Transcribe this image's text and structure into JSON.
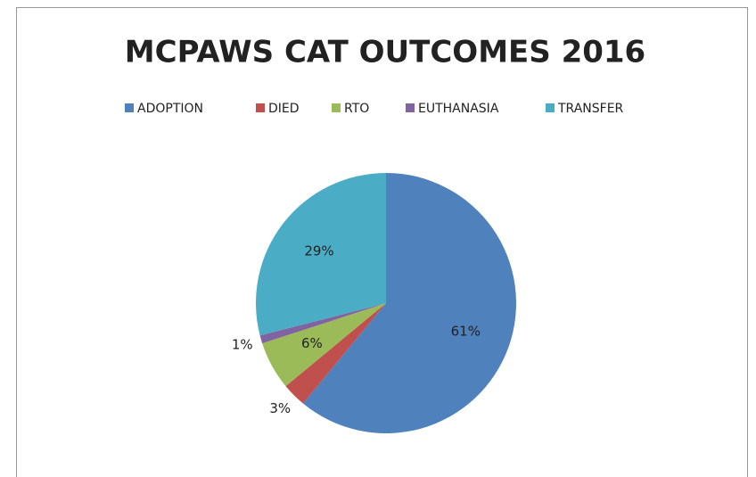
{
  "chart_data": {
    "type": "pie",
    "title": "MCPAWS CAT OUTCOMES 2016",
    "categories": [
      "ADOPTION",
      "DIED",
      "RTO",
      "EUTHANASIA",
      "TRANSFER"
    ],
    "values": [
      61,
      3,
      6,
      1,
      29
    ],
    "value_labels": [
      "61%",
      "3%",
      "6%",
      "1%",
      "29%"
    ],
    "colors": [
      "#4f81bd",
      "#c0504d",
      "#9bbb59",
      "#8064a2",
      "#4bacc6"
    ],
    "legend": "top"
  }
}
